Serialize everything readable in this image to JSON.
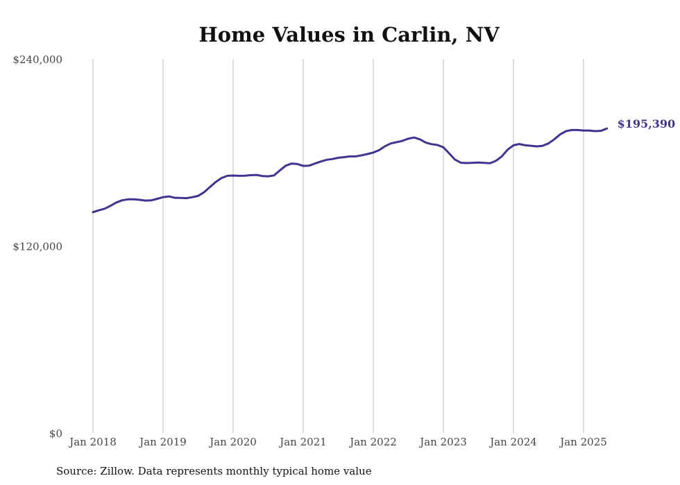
{
  "chart_data": {
    "type": "line",
    "title": "Home Values in Carlin, NV",
    "xlabel": "",
    "ylabel": "",
    "ylim": [
      0,
      240000
    ],
    "x_range": [
      "2018-01",
      "2025-05"
    ],
    "y_ticks": [
      0,
      120000,
      240000
    ],
    "y_tick_labels": [
      "$0",
      "$120,000",
      "$240,000"
    ],
    "x_ticks": [
      "2018-01",
      "2019-01",
      "2020-01",
      "2021-01",
      "2022-01",
      "2023-01",
      "2024-01",
      "2025-01"
    ],
    "x_tick_labels": [
      "Jan 2018",
      "Jan 2019",
      "Jan 2020",
      "Jan 2021",
      "Jan 2022",
      "Jan 2023",
      "Jan 2024",
      "Jan 2025"
    ],
    "grid": {
      "vertical": true,
      "horizontal": false
    },
    "line_color": "#3d3591",
    "end_label": "$195,390",
    "series": [
      {
        "values": [
          [
            "2018-01",
            141700
          ],
          [
            "2018-02",
            142900
          ],
          [
            "2018-03",
            143900
          ],
          [
            "2018-04",
            145800
          ],
          [
            "2018-05",
            147900
          ],
          [
            "2018-06",
            149300
          ],
          [
            "2018-07",
            149900
          ],
          [
            "2018-08",
            149900
          ],
          [
            "2018-09",
            149600
          ],
          [
            "2018-10",
            149100
          ],
          [
            "2018-11",
            149300
          ],
          [
            "2018-12",
            150300
          ],
          [
            "2019-01",
            151300
          ],
          [
            "2019-02",
            151800
          ],
          [
            "2019-03",
            150900
          ],
          [
            "2019-04",
            150800
          ],
          [
            "2019-05",
            150700
          ],
          [
            "2019-06",
            151300
          ],
          [
            "2019-07",
            152100
          ],
          [
            "2019-08",
            154400
          ],
          [
            "2019-09",
            157700
          ],
          [
            "2019-10",
            161000
          ],
          [
            "2019-11",
            163600
          ],
          [
            "2019-12",
            165000
          ],
          [
            "2020-01",
            165200
          ],
          [
            "2020-02",
            165000
          ],
          [
            "2020-03",
            165100
          ],
          [
            "2020-04",
            165400
          ],
          [
            "2020-05",
            165600
          ],
          [
            "2020-06",
            164900
          ],
          [
            "2020-07",
            164700
          ],
          [
            "2020-08",
            165300
          ],
          [
            "2020-09",
            168500
          ],
          [
            "2020-10",
            171500
          ],
          [
            "2020-11",
            172900
          ],
          [
            "2020-12",
            172600
          ],
          [
            "2021-01",
            171400
          ],
          [
            "2021-02",
            171500
          ],
          [
            "2021-03",
            172900
          ],
          [
            "2021-04",
            174200
          ],
          [
            "2021-05",
            175300
          ],
          [
            "2021-06",
            175800
          ],
          [
            "2021-07",
            176600
          ],
          [
            "2021-08",
            177000
          ],
          [
            "2021-09",
            177500
          ],
          [
            "2021-10",
            177500
          ],
          [
            "2021-11",
            178200
          ],
          [
            "2021-12",
            179000
          ],
          [
            "2022-01",
            180000
          ],
          [
            "2022-02",
            181500
          ],
          [
            "2022-03",
            184000
          ],
          [
            "2022-04",
            185800
          ],
          [
            "2022-05",
            186600
          ],
          [
            "2022-06",
            187500
          ],
          [
            "2022-07",
            188900
          ],
          [
            "2022-08",
            189600
          ],
          [
            "2022-09",
            188400
          ],
          [
            "2022-10",
            186300
          ],
          [
            "2022-11",
            185300
          ],
          [
            "2022-12",
            184800
          ],
          [
            "2023-01",
            183300
          ],
          [
            "2023-02",
            179400
          ],
          [
            "2023-03",
            175400
          ],
          [
            "2023-04",
            173400
          ],
          [
            "2023-05",
            173200
          ],
          [
            "2023-06",
            173400
          ],
          [
            "2023-07",
            173500
          ],
          [
            "2023-08",
            173300
          ],
          [
            "2023-09",
            173100
          ],
          [
            "2023-10",
            174700
          ],
          [
            "2023-11",
            177500
          ],
          [
            "2023-12",
            181800
          ],
          [
            "2024-01",
            184600
          ],
          [
            "2024-02",
            185400
          ],
          [
            "2024-03",
            184600
          ],
          [
            "2024-04",
            184300
          ],
          [
            "2024-05",
            183900
          ],
          [
            "2024-06",
            184300
          ],
          [
            "2024-07",
            185800
          ],
          [
            "2024-08",
            188500
          ],
          [
            "2024-09",
            191600
          ],
          [
            "2024-10",
            193700
          ],
          [
            "2024-11",
            194400
          ],
          [
            "2024-12",
            194400
          ],
          [
            "2025-01",
            194100
          ],
          [
            "2025-02",
            194100
          ],
          [
            "2025-03",
            193700
          ],
          [
            "2025-04",
            193900
          ],
          [
            "2025-05",
            195390
          ]
        ]
      }
    ],
    "source": "Source: Zillow. Data represents monthly typical home value"
  }
}
